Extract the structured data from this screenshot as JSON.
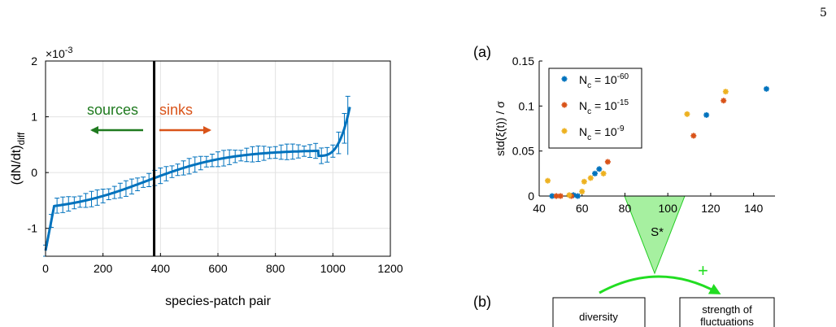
{
  "page_number": "5",
  "chart_data": [
    {
      "type": "scatter",
      "xlabel": "species-patch pair",
      "ylabel_main": "(dN/dt)",
      "ylabel_sub": "diff",
      "exponent_base": "×10",
      "exponent_power": "-3",
      "xlim": [
        0,
        1200
      ],
      "ylim": [
        -1.5,
        2
      ],
      "xticks": [
        "0",
        "200",
        "400",
        "600",
        "800",
        "1000",
        "1200"
      ],
      "yticks": [
        "-1",
        "0",
        "1",
        "2"
      ],
      "grid": true,
      "divider_x": 378,
      "sources_label": "sources",
      "sinks_label": "sinks",
      "sources_color": "#1f7a1f",
      "sinks_color": "#d95319",
      "series_color": "#0072bd",
      "n_points": 1060,
      "errorbar_stride": 20,
      "curve_shape": "sorted values: steep rise from about -1.4 at x=0 to about -0.6 near x=30, slow rise through 0 near x=380 to about 0.3 at x=950, then steep rise to about 1.2 at x=1055"
    },
    {
      "type": "scatter",
      "panel_label": "(a)",
      "ylabel": "std(ξ(t)) / σ",
      "xlim": [
        40,
        150
      ],
      "ylim": [
        0,
        0.15
      ],
      "xticks": [
        "40",
        "60",
        "80",
        "100",
        "120",
        "140"
      ],
      "yticks": [
        "0",
        "0.05",
        "0.1",
        "0.15"
      ],
      "grid": false,
      "legend_position": "top-left",
      "series": [
        {
          "legend_base": "N",
          "legend_sub": "c",
          "legend_eq": " = 10",
          "legend_sup": "-60",
          "color": "#0072bd",
          "x": [
            46,
            56,
            58,
            66,
            68,
            118,
            146
          ],
          "y": [
            0,
            0.001,
            0,
            0.025,
            0.03,
            0.09,
            0.119
          ]
        },
        {
          "legend_base": "N",
          "legend_sub": "c",
          "legend_eq": " = 10",
          "legend_sup": "-15",
          "color": "#d95319",
          "x": [
            48,
            50,
            55,
            72,
            112,
            126
          ],
          "y": [
            0,
            0,
            0,
            0.038,
            0.067,
            0.106
          ]
        },
        {
          "legend_base": "N",
          "legend_sub": "c",
          "legend_eq": " = 10",
          "legend_sup": "-9",
          "color": "#edb120",
          "x": [
            44,
            54,
            60,
            61,
            64,
            70,
            109,
            127
          ],
          "y": [
            0.017,
            0.001,
            0.005,
            0.016,
            0.02,
            0.025,
            0.091,
            0.116
          ]
        }
      ],
      "annotation": "S*"
    }
  ],
  "diagram": {
    "panel_label": "(b)",
    "box1": "diversity",
    "box2_line1": "strength of",
    "box2_line2": "fluctuations",
    "plus": "+",
    "arrow_color": "#22dd22",
    "wedge_color": "#a6f0a0"
  }
}
